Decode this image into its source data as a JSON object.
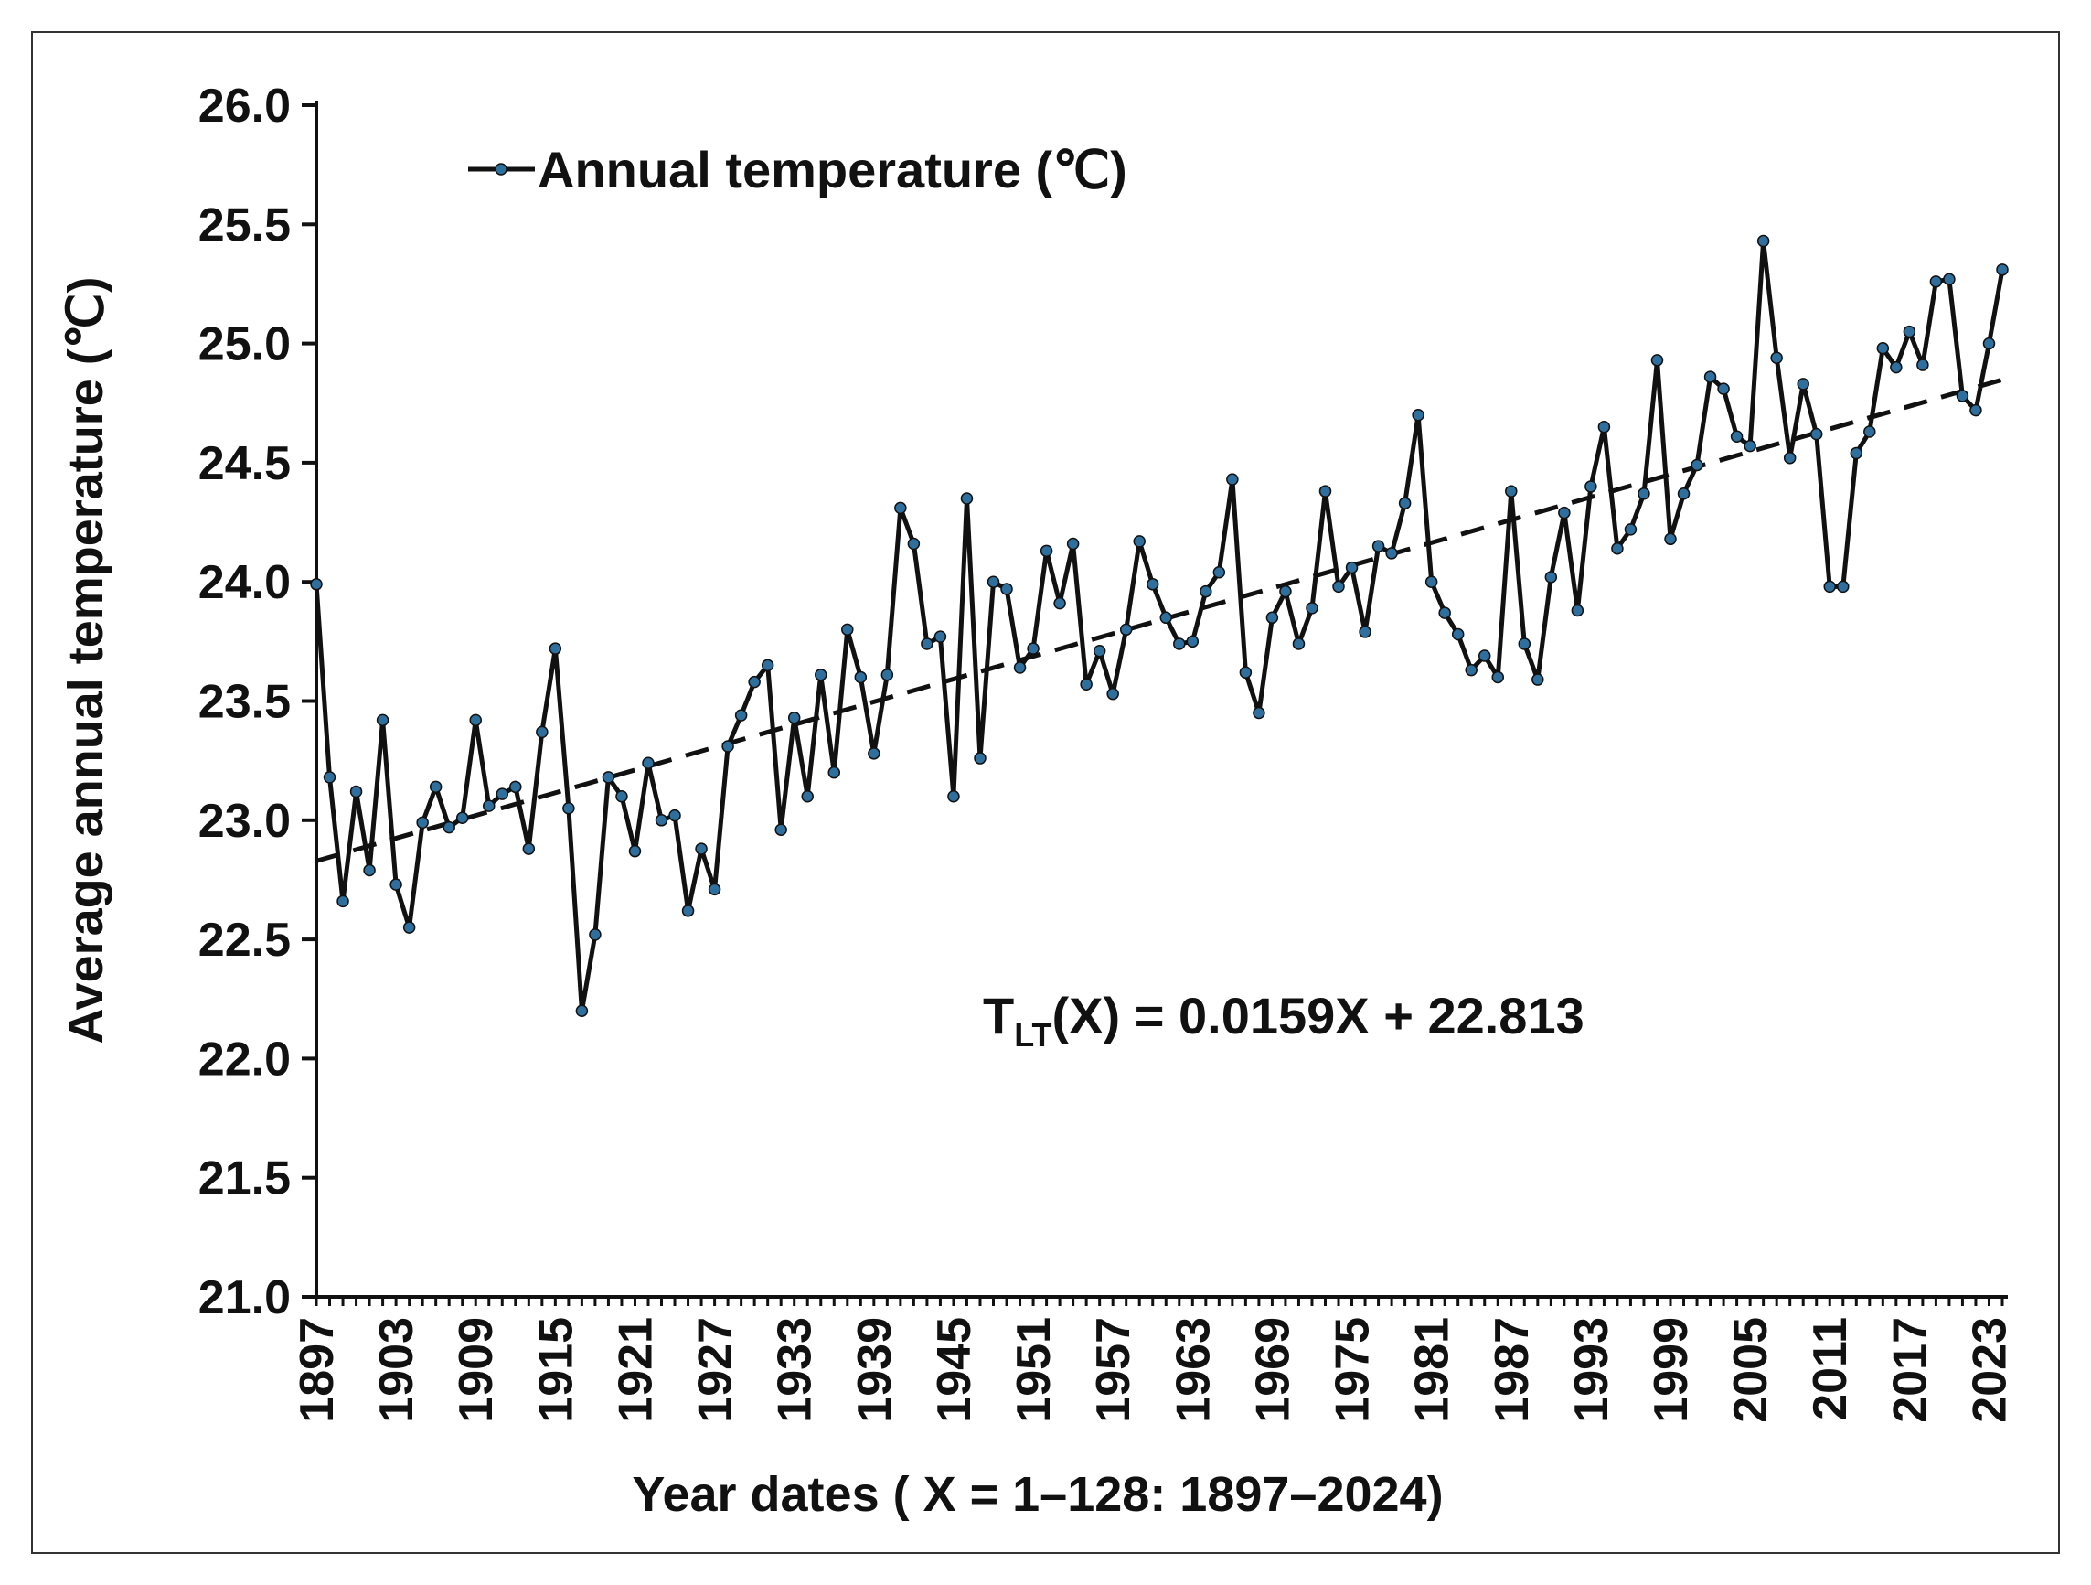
{
  "chart_data": {
    "type": "line",
    "xlabel": "Year dates ( X = 1–128: 1897–2024)",
    "ylabel": "Average annual temperature (℃)",
    "ylim": [
      21.0,
      26.0
    ],
    "yticks": [
      "21.0",
      "21.5",
      "22.0",
      "22.5",
      "23.0",
      "23.5",
      "24.0",
      "24.5",
      "25.0",
      "25.5",
      "26.0"
    ],
    "xlim": [
      1897,
      2024
    ],
    "xticks": [
      "1897",
      "1903",
      "1909",
      "1915",
      "1921",
      "1927",
      "1933",
      "1939",
      "1945",
      "1951",
      "1957",
      "1963",
      "1969",
      "1975",
      "1981",
      "1987",
      "1993",
      "1999",
      "2005",
      "2011",
      "2017",
      "2023"
    ],
    "legend": {
      "label": "Annual temperature (℃)",
      "position": "top-left"
    },
    "grid": false,
    "colors": {
      "line": "#111111",
      "marker": "#2e6f9e",
      "trend": "#111111"
    },
    "trendline": {
      "style": "dashed",
      "slope": 0.0159,
      "intercept": 22.813,
      "x_range": [
        1,
        128
      ],
      "equation": {
        "prefix": "T",
        "subscript": "LT",
        "rest": "(X) = 0.0159X + 22.813"
      }
    },
    "series": [
      {
        "name": "Annual temperature (℃)",
        "x": [
          1897,
          1898,
          1899,
          1900,
          1901,
          1902,
          1903,
          1904,
          1905,
          1906,
          1907,
          1908,
          1909,
          1910,
          1911,
          1912,
          1913,
          1914,
          1915,
          1916,
          1917,
          1918,
          1919,
          1920,
          1921,
          1922,
          1923,
          1924,
          1925,
          1926,
          1927,
          1928,
          1929,
          1930,
          1931,
          1932,
          1933,
          1934,
          1935,
          1936,
          1937,
          1938,
          1939,
          1940,
          1941,
          1942,
          1943,
          1944,
          1945,
          1946,
          1947,
          1948,
          1949,
          1950,
          1951,
          1952,
          1953,
          1954,
          1955,
          1956,
          1957,
          1958,
          1959,
          1960,
          1961,
          1962,
          1963,
          1964,
          1965,
          1966,
          1967,
          1968,
          1969,
          1970,
          1971,
          1972,
          1973,
          1974,
          1975,
          1976,
          1977,
          1978,
          1979,
          1980,
          1981,
          1982,
          1983,
          1984,
          1985,
          1986,
          1987,
          1988,
          1989,
          1990,
          1991,
          1992,
          1993,
          1994,
          1995,
          1996,
          1997,
          1998,
          1999,
          2000,
          2001,
          2002,
          2003,
          2004,
          2005,
          2006,
          2007,
          2008,
          2009,
          2010,
          2011,
          2012,
          2013,
          2014,
          2015,
          2016,
          2017,
          2018,
          2019,
          2020,
          2021,
          2022,
          2023,
          2024
        ],
        "values": [
          23.99,
          23.18,
          22.66,
          23.12,
          22.79,
          23.42,
          22.73,
          22.55,
          22.99,
          23.14,
          22.97,
          23.01,
          23.42,
          23.06,
          23.11,
          23.14,
          22.88,
          23.37,
          23.72,
          23.05,
          22.2,
          22.52,
          23.18,
          23.1,
          22.87,
          23.24,
          23.0,
          23.02,
          22.62,
          22.88,
          22.71,
          23.31,
          23.44,
          23.58,
          23.65,
          22.96,
          23.43,
          23.1,
          23.61,
          23.2,
          23.8,
          23.6,
          23.28,
          23.61,
          24.31,
          24.16,
          23.74,
          23.77,
          23.1,
          24.35,
          23.26,
          24.0,
          23.97,
          23.64,
          23.72,
          24.13,
          23.91,
          24.16,
          23.57,
          23.71,
          23.53,
          23.8,
          24.17,
          23.99,
          23.85,
          23.74,
          23.75,
          23.96,
          24.04,
          24.43,
          23.62,
          23.45,
          23.85,
          23.96,
          23.74,
          23.89,
          24.38,
          23.98,
          24.06,
          23.79,
          24.15,
          24.12,
          24.33,
          24.7,
          24.0,
          23.87,
          23.78,
          23.63,
          23.69,
          23.6,
          24.38,
          23.74,
          23.59,
          24.02,
          24.29,
          23.88,
          24.4,
          24.65,
          24.14,
          24.22,
          24.37,
          24.93,
          24.18,
          24.37,
          24.49,
          24.86,
          24.81,
          24.61,
          24.57,
          25.43,
          24.94,
          24.52,
          24.83,
          24.62,
          23.98,
          23.98,
          24.54,
          24.63,
          24.98,
          24.9,
          25.05,
          24.91,
          25.26,
          25.27,
          24.78,
          24.72,
          25.0,
          25.31
        ]
      }
    ]
  }
}
